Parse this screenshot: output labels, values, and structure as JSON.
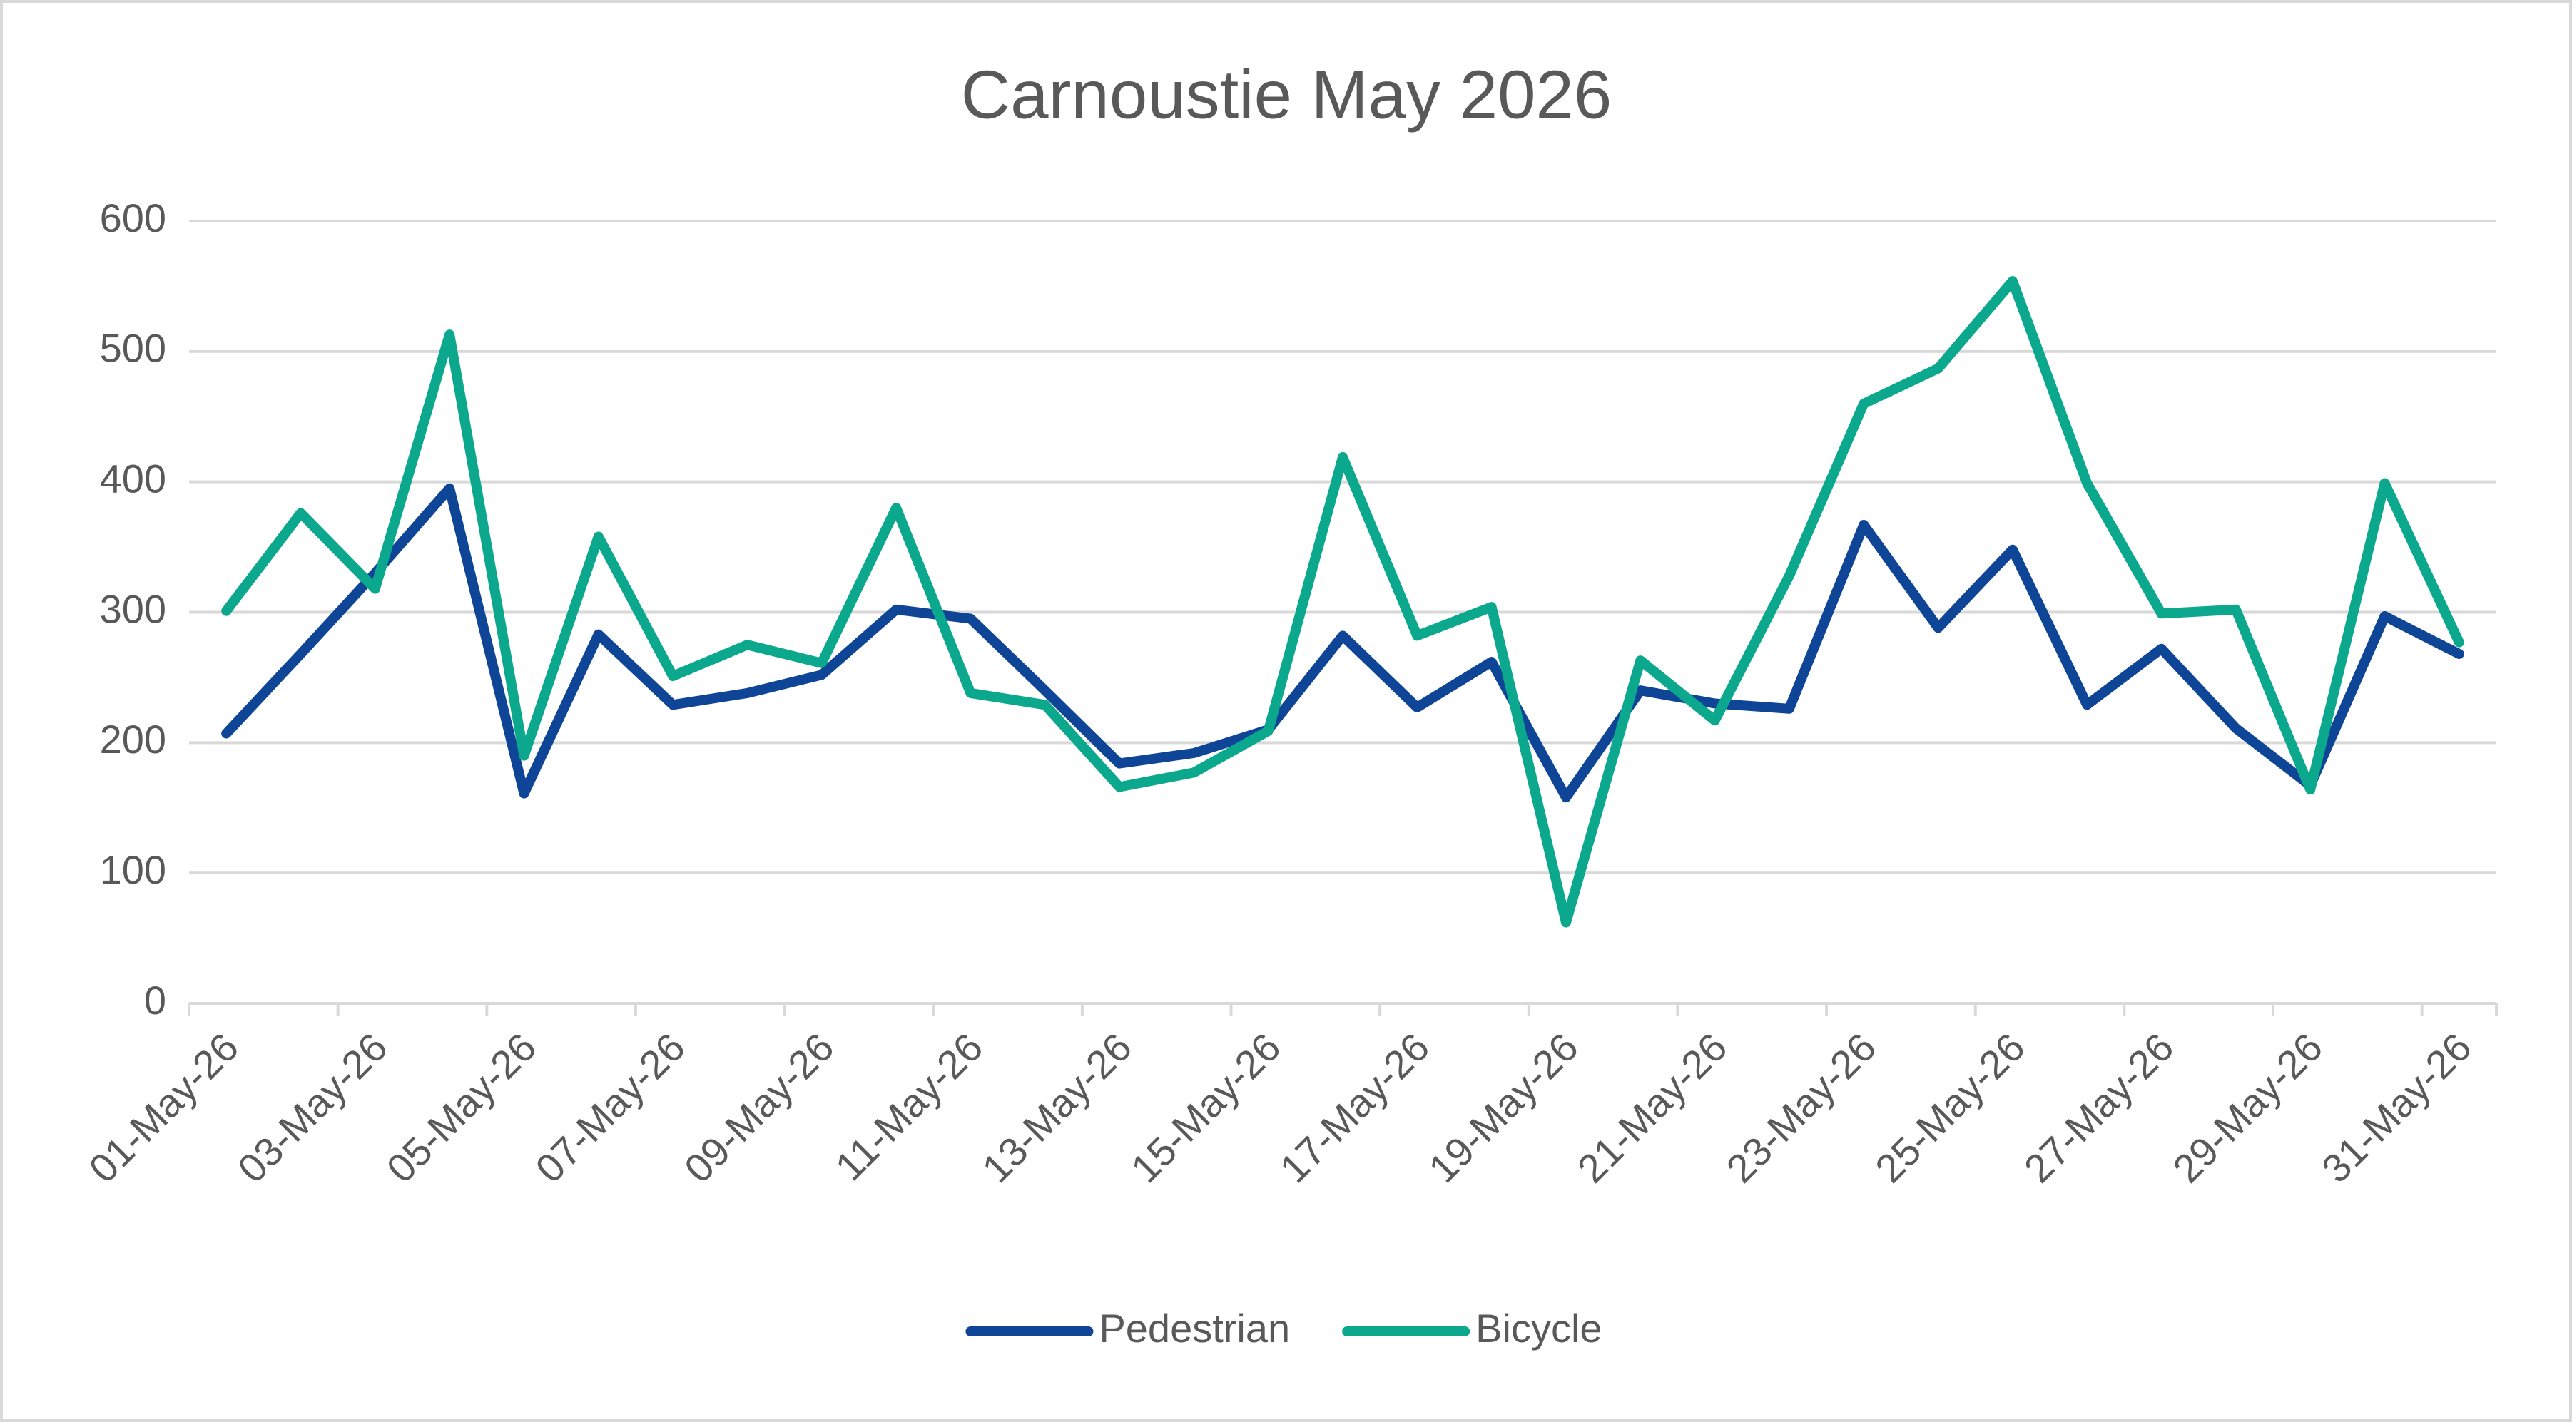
{
  "chart_data": {
    "type": "line",
    "title": "Carnoustie May 2026",
    "categories": [
      "01-May-26",
      null,
      "03-May-26",
      null,
      "05-May-26",
      null,
      "07-May-26",
      null,
      "09-May-26",
      null,
      "11-May-26",
      null,
      "13-May-26",
      null,
      "15-May-26",
      null,
      "17-May-26",
      null,
      "19-May-26",
      null,
      "21-May-26",
      null,
      "23-May-26",
      null,
      "25-May-26",
      null,
      "27-May-26",
      null,
      "29-May-26",
      null,
      "31-May-26"
    ],
    "series": [
      {
        "name": "Pedestrian",
        "color": "#0f4597",
        "values": [
          207,
          268,
          330,
          395,
          161,
          283,
          229,
          238,
          252,
          302,
          295,
          240,
          184,
          192,
          210,
          282,
          227,
          262,
          158,
          240,
          230,
          226,
          367,
          288,
          348,
          229,
          272,
          211,
          167,
          297,
          268
        ]
      },
      {
        "name": "Bicycle",
        "color": "#0ba88e",
        "values": [
          301,
          376,
          318,
          513,
          190,
          358,
          251,
          275,
          261,
          380,
          238,
          229,
          166,
          177,
          209,
          419,
          282,
          304,
          62,
          263,
          217,
          328,
          460,
          487,
          554,
          399,
          299,
          302,
          164,
          399,
          277
        ]
      }
    ],
    "ylim": [
      0,
      600
    ],
    "yticks": [
      0,
      100,
      200,
      300,
      400,
      500,
      600
    ],
    "grid": true,
    "legend": "bottom"
  }
}
